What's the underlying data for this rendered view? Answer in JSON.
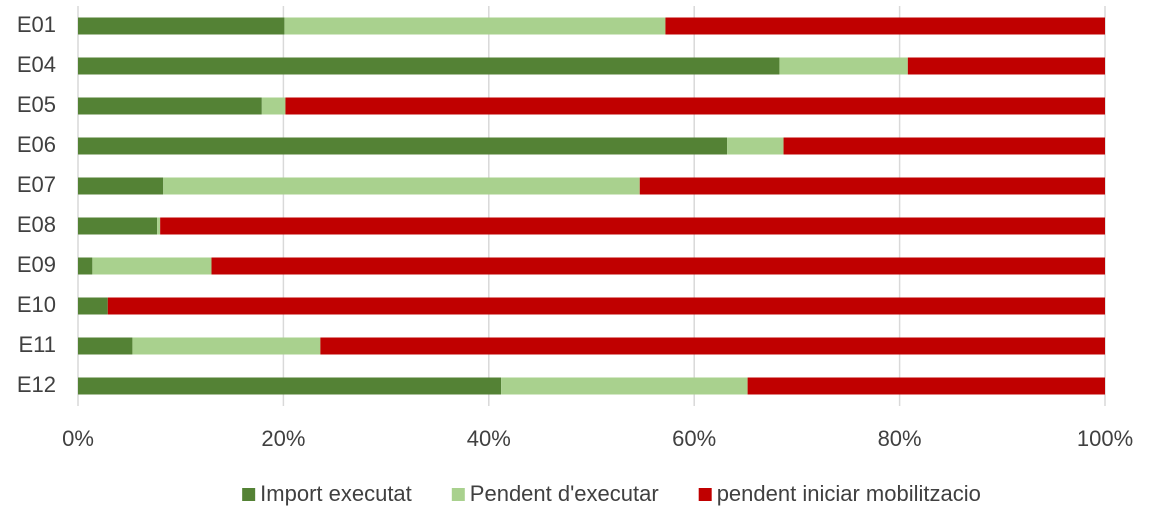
{
  "chart_data": {
    "type": "stacked-barh",
    "categories": [
      "E01",
      "E04",
      "E05",
      "E06",
      "E07",
      "E08",
      "E09",
      "E10",
      "E11",
      "E12"
    ],
    "series": [
      {
        "name": "Import executat",
        "color": "#548235",
        "values": [
          20.1,
          68.3,
          17.9,
          63.2,
          8.3,
          7.7,
          1.4,
          2.9,
          5.3,
          41.2
        ]
      },
      {
        "name": "Pendent d'executar",
        "color": "#a9d18e",
        "values": [
          37.1,
          12.5,
          2.3,
          5.5,
          46.4,
          0.3,
          11.6,
          0,
          18.3,
          24.0
        ]
      },
      {
        "name": "pendent iniciar mobilitzacio",
        "color": "#c00000",
        "values": [
          42.8,
          19.2,
          79.8,
          31.3,
          45.3,
          92.0,
          87.0,
          97.1,
          76.4,
          34.8
        ]
      }
    ],
    "xlim": [
      0,
      100
    ],
    "xticks": [
      {
        "value": 0,
        "label": "0%"
      },
      {
        "value": 20,
        "label": "20%"
      },
      {
        "value": 40,
        "label": "40%"
      },
      {
        "value": 60,
        "label": "60%"
      },
      {
        "value": 80,
        "label": "80%"
      },
      {
        "value": 100,
        "label": "100%"
      }
    ],
    "grid": true,
    "legend": "bottom"
  }
}
